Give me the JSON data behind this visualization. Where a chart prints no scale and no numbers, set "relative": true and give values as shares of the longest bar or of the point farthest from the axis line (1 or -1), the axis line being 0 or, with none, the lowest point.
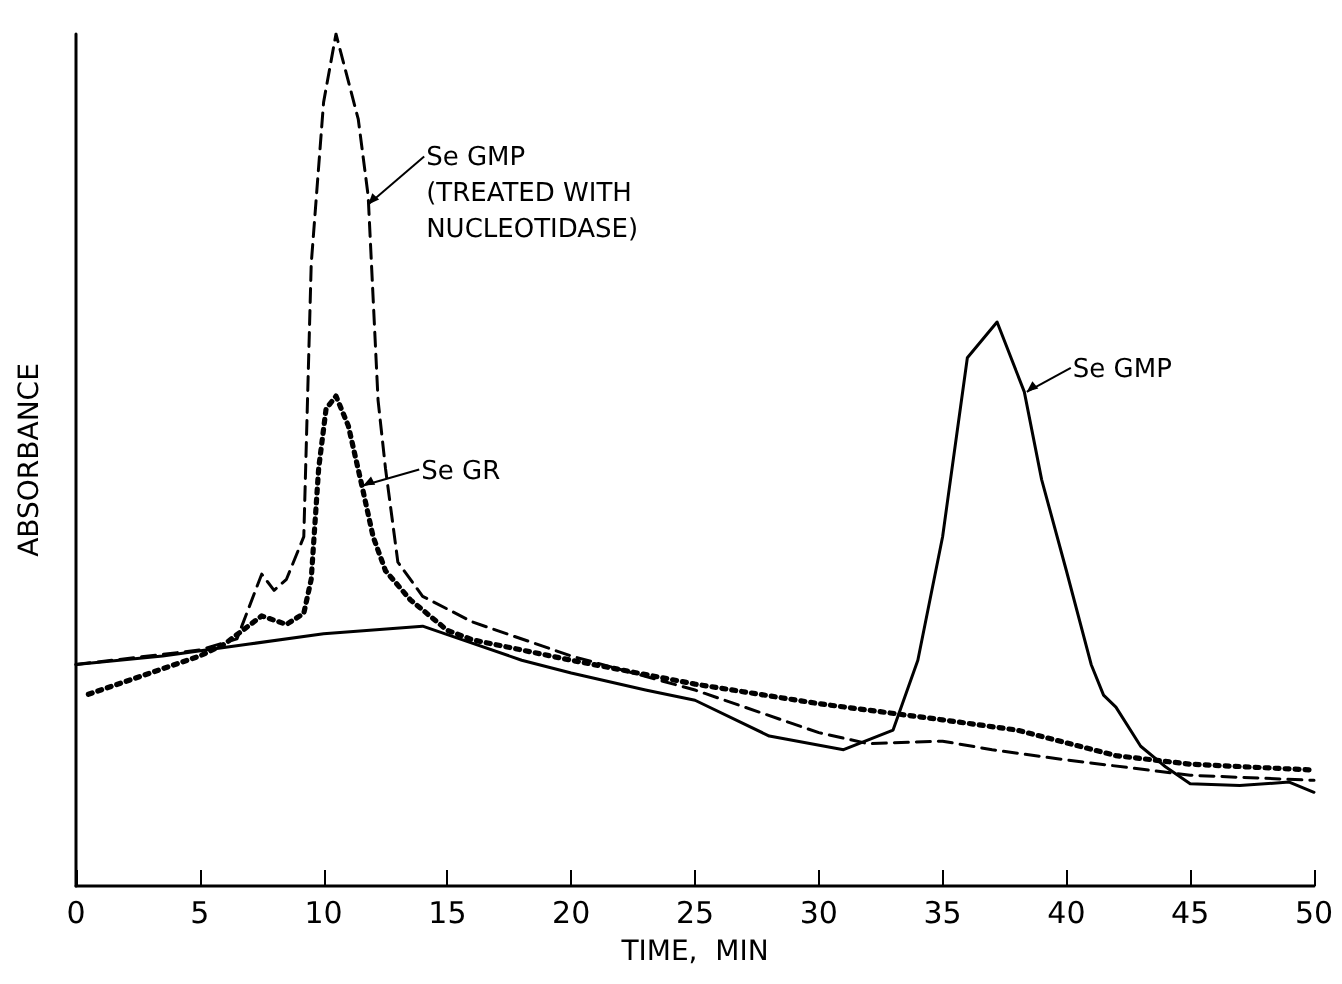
{
  "chart_data": {
    "type": "line",
    "relative": true,
    "xlabel": "TIME,  MIN",
    "ylabel": "ABSORBANCE",
    "xlim": [
      0,
      50
    ],
    "xticks": [
      0,
      5,
      10,
      15,
      20,
      25,
      30,
      35,
      40,
      45,
      50
    ],
    "grid": false,
    "marker": "none",
    "series": [
      {
        "color": "#000000",
        "line_style": "dashed",
        "x": [
          0,
          5,
          6.5,
          7.5,
          8,
          8.5,
          9.2,
          9.5,
          10,
          10.5,
          11.4,
          11.8,
          12.2,
          12.5,
          13,
          14,
          16,
          20,
          25,
          30,
          32,
          35,
          37,
          40,
          45,
          50
        ],
        "values": [
          0.26,
          0.277,
          0.29,
          0.366,
          0.347,
          0.36,
          0.41,
          0.73,
          0.92,
          1,
          0.9,
          0.81,
          0.57,
          0.49,
          0.38,
          0.34,
          0.31,
          0.27,
          0.23,
          0.18,
          0.167,
          0.17,
          0.16,
          0.148,
          0.13,
          0.124
        ]
      },
      {
        "color": "#000000",
        "line_style": "dotted",
        "x": [
          0.5,
          3,
          5,
          6,
          7.5,
          8.5,
          9.2,
          9.5,
          9.8,
          10.1,
          10.5,
          11,
          11.5,
          12,
          12.5,
          13.5,
          15,
          16,
          20,
          25,
          30,
          35,
          38,
          42,
          45,
          50
        ],
        "values": [
          0.225,
          0.25,
          0.27,
          0.284,
          0.317,
          0.307,
          0.32,
          0.36,
          0.49,
          0.56,
          0.575,
          0.54,
          0.476,
          0.41,
          0.37,
          0.336,
          0.3,
          0.289,
          0.265,
          0.237,
          0.214,
          0.195,
          0.183,
          0.153,
          0.143,
          0.136
        ]
      },
      {
        "color": "#000000",
        "line_style": "solid",
        "x": [
          0,
          3.5,
          7,
          10,
          14,
          15,
          18,
          20,
          23,
          25,
          28,
          31,
          33,
          34,
          35,
          36,
          37.2,
          38.3,
          39,
          40,
          41,
          41.5,
          42,
          43,
          44,
          45,
          47,
          49,
          50
        ],
        "values": [
          0.26,
          0.27,
          0.284,
          0.296,
          0.305,
          0.295,
          0.265,
          0.25,
          0.23,
          0.218,
          0.176,
          0.16,
          0.183,
          0.265,
          0.41,
          0.62,
          0.662,
          0.58,
          0.477,
          0.37,
          0.26,
          0.224,
          0.21,
          0.164,
          0.14,
          0.12,
          0.118,
          0.122,
          0.11
        ]
      }
    ],
    "annotations": [
      {
        "text": "Se GMP\n(TREATED WITH\nNUCLEOTIDASE)",
        "x": 11.8,
        "y": 0.8
      },
      {
        "text": "Se GR",
        "x": 11.6,
        "y": 0.47
      },
      {
        "text": "Se GMP",
        "x": 38.4,
        "y": 0.58
      }
    ]
  }
}
